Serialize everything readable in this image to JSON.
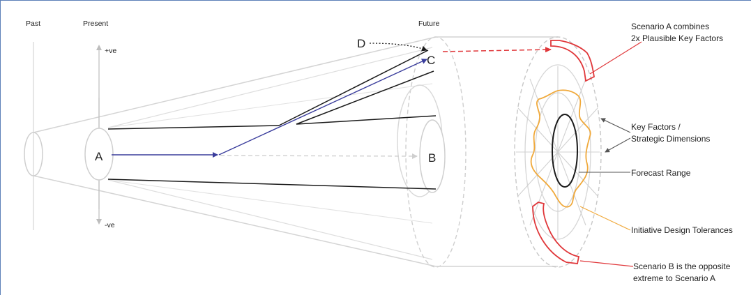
{
  "timeline": {
    "past": "Past",
    "present": "Present",
    "future": "Future"
  },
  "axis": {
    "positive": "+ve",
    "negative": "-ve"
  },
  "points": {
    "a": "A",
    "b": "B",
    "c": "C",
    "d": "D"
  },
  "annotations": {
    "scenario_a": [
      "Scenario A combines",
      "2x Plausible Key Factors"
    ],
    "key_factors": [
      "Key Factors /",
      "Strategic Dimensions"
    ],
    "forecast_range": "Forecast Range",
    "tolerances": "Initiative Design Tolerances",
    "scenario_b": [
      "Scenario B is the opposite",
      "extreme to Scenario A"
    ]
  },
  "colors": {
    "light_gray": "#d0d0d0",
    "black": "#1a1a1a",
    "navy_arrow": "#3a3d9c",
    "scenario_red": "#e0373a",
    "tolerance_orange": "#f0a93b"
  }
}
